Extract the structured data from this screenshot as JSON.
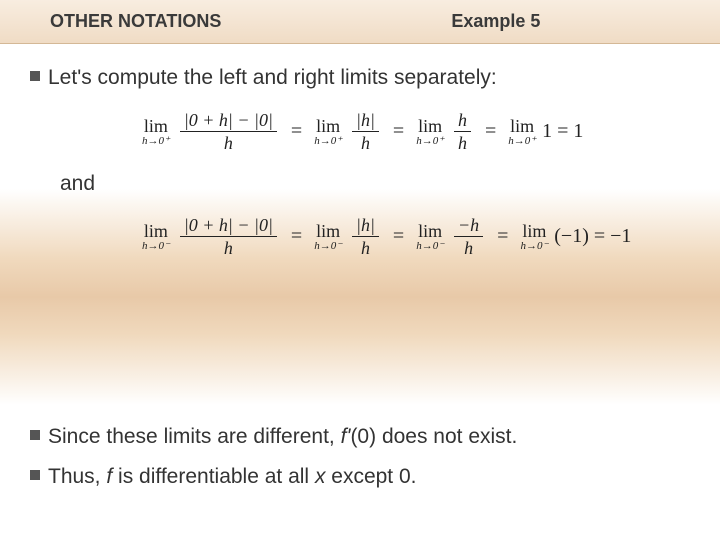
{
  "header": {
    "left": "OTHER NOTATIONS",
    "right": "Example 5"
  },
  "body": {
    "intro": "Let's compute the left and right limits separately:",
    "and": "and",
    "concl1_a": "Since these limits are different, ",
    "concl1_b": "f'",
    "concl1_c": "(0) does not exist.",
    "concl2_a": "Thus, ",
    "concl2_b": "f",
    "concl2_c": " is differentiable at all ",
    "concl2_d": "x",
    "concl2_e": " except 0."
  },
  "eq1": {
    "lim1_top": "lim",
    "lim1_sub": "h→0⁺",
    "f1_num": "|0 + h| − |0|",
    "f1_den": "h",
    "lim2_top": "lim",
    "lim2_sub": "h→0⁺",
    "f2_num": "|h|",
    "f2_den": "h",
    "lim3_top": "lim",
    "lim3_sub": "h→0⁺",
    "f3_num": "h",
    "f3_den": "h",
    "lim4_top": "lim",
    "lim4_sub": "h→0⁺",
    "tail": "1 = 1"
  },
  "eq2": {
    "lim1_top": "lim",
    "lim1_sub": "h→0⁻",
    "f1_num": "|0 + h| − |0|",
    "f1_den": "h",
    "lim2_top": "lim",
    "lim2_sub": "h→0⁻",
    "f2_num": "|h|",
    "f2_den": "h",
    "lim3_top": "lim",
    "lim3_sub": "h→0⁻",
    "f3_num": "−h",
    "f3_den": "h",
    "lim4_top": "lim",
    "lim4_sub": "h→0⁻",
    "tail": "(−1) = −1"
  },
  "colors": {
    "text": "#333333",
    "bullet": "#555555",
    "header_bg_top": "#f8ede0",
    "header_bg_bottom": "#f0dcc5",
    "bg_warm": "#e8c9a8"
  },
  "typography": {
    "body_fontsize": 21,
    "header_fontsize": 18,
    "math_fontsize": 20,
    "math_family": "Times New Roman"
  }
}
